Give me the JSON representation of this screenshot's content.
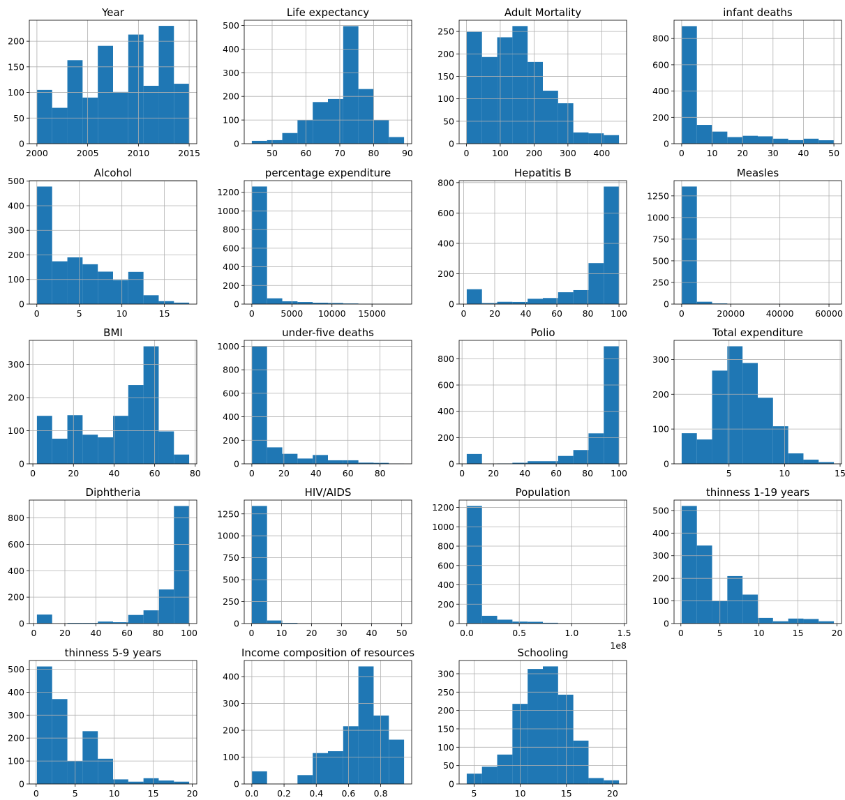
{
  "bar_color": "#1f77b4",
  "grid_color": "#b0b0b0",
  "chart_data": [
    {
      "type": "bar",
      "title": "Year",
      "bin_edges": [
        2000,
        2001.5,
        2003,
        2004.5,
        2006,
        2007.5,
        2009,
        2010.5,
        2012,
        2013.5,
        2015
      ],
      "values": [
        105,
        70,
        163,
        90,
        191,
        101,
        213,
        113,
        230,
        117
      ],
      "xlim": [
        1999.25,
        2015.75
      ],
      "ylim": [
        0,
        241
      ],
      "xticks": [
        2000,
        2005,
        2010,
        2015
      ],
      "xtick_labels": [
        "2000",
        "2005",
        "2010",
        "2015"
      ],
      "yticks": [
        0,
        50,
        100,
        150,
        200
      ],
      "ytick_labels": [
        "0",
        "50",
        "100",
        "150",
        "200"
      ]
    },
    {
      "type": "bar",
      "title": "Life expectancy",
      "bin_edges": [
        44,
        48.5,
        53,
        57.5,
        62,
        66.5,
        71,
        75.5,
        80,
        84.5,
        89
      ],
      "values": [
        12,
        15,
        45,
        100,
        176,
        189,
        497,
        231,
        100,
        28
      ],
      "xlim": [
        41.75,
        91.25
      ],
      "ylim": [
        0,
        522
      ],
      "xticks": [
        50,
        60,
        70,
        80,
        90
      ],
      "xtick_labels": [
        "50",
        "60",
        "70",
        "80",
        "90"
      ],
      "yticks": [
        0,
        100,
        200,
        300,
        400,
        500
      ],
      "ytick_labels": [
        "0",
        "100",
        "200",
        "300",
        "400",
        "500"
      ]
    },
    {
      "type": "bar",
      "title": "Adult Mortality",
      "bin_edges": [
        1,
        46,
        91,
        136,
        181,
        226,
        271,
        316,
        361,
        406,
        451
      ],
      "values": [
        249,
        193,
        237,
        262,
        182,
        118,
        90,
        25,
        23,
        19
      ],
      "xlim": [
        -21.5,
        473.5
      ],
      "ylim": [
        0,
        275
      ],
      "xticks": [
        0,
        100,
        200,
        300,
        400
      ],
      "xtick_labels": [
        "0",
        "100",
        "200",
        "300",
        "400"
      ],
      "yticks": [
        0,
        50,
        100,
        150,
        200,
        250
      ],
      "ytick_labels": [
        "0",
        "50",
        "100",
        "150",
        "200",
        "250"
      ]
    },
    {
      "type": "bar",
      "title": "infant deaths",
      "bin_edges": [
        0,
        5,
        10,
        15,
        20,
        25,
        30,
        35,
        40,
        45,
        50
      ],
      "values": [
        894,
        143,
        92,
        50,
        60,
        56,
        38,
        27,
        38,
        26
      ],
      "xlim": [
        -2.5,
        52.5
      ],
      "ylim": [
        0,
        939
      ],
      "xticks": [
        0,
        10,
        20,
        30,
        40,
        50
      ],
      "xtick_labels": [
        "0",
        "10",
        "20",
        "30",
        "40",
        "50"
      ],
      "yticks": [
        0,
        200,
        400,
        600,
        800
      ],
      "ytick_labels": [
        "0",
        "200",
        "400",
        "600",
        "800"
      ]
    },
    {
      "type": "bar",
      "title": "Alcohol",
      "bin_edges": [
        0.01,
        1.8,
        3.59,
        5.38,
        7.17,
        8.96,
        10.75,
        12.54,
        14.33,
        16.12,
        17.91
      ],
      "values": [
        478,
        174,
        190,
        162,
        132,
        98,
        131,
        36,
        12,
        6
      ],
      "xlim": [
        -0.885,
        18.805
      ],
      "ylim": [
        0,
        502
      ],
      "xticks": [
        0,
        5,
        10,
        15
      ],
      "xtick_labels": [
        "0",
        "5",
        "10",
        "15"
      ],
      "yticks": [
        0,
        100,
        200,
        300,
        400,
        500
      ],
      "ytick_labels": [
        "0",
        "100",
        "200",
        "300",
        "400",
        "500"
      ]
    },
    {
      "type": "bar",
      "title": "percentage expenditure",
      "bin_edges": [
        0,
        1900,
        3800,
        5700,
        7600,
        9500,
        11400,
        13300,
        15200,
        17100,
        19000
      ],
      "values": [
        1262,
        62,
        30,
        22,
        15,
        12,
        7,
        4,
        3,
        2
      ],
      "xlim": [
        -950,
        19950
      ],
      "ylim": [
        0,
        1325
      ],
      "xticks": [
        0,
        5000,
        10000,
        15000
      ],
      "xtick_labels": [
        "0",
        "5000",
        "10000",
        "15000"
      ],
      "yticks": [
        0,
        200,
        400,
        600,
        800,
        1000,
        1200
      ],
      "ytick_labels": [
        "0",
        "200",
        "400",
        "600",
        "800",
        "1000",
        "1200"
      ]
    },
    {
      "type": "bar",
      "title": "Hepatitis B",
      "bin_edges": [
        2,
        11.8,
        21.6,
        31.4,
        41.2,
        51,
        60.8,
        70.6,
        80.4,
        90.2,
        100
      ],
      "values": [
        98,
        7,
        15,
        14,
        35,
        40,
        78,
        92,
        270,
        774
      ],
      "xlim": [
        -2.9,
        104.9
      ],
      "ylim": [
        0,
        813
      ],
      "xticks": [
        0,
        20,
        40,
        60,
        80,
        100
      ],
      "xtick_labels": [
        "0",
        "20",
        "40",
        "60",
        "80",
        "100"
      ],
      "yticks": [
        0,
        200,
        400,
        600,
        800
      ],
      "ytick_labels": [
        "0",
        "200",
        "400",
        "600",
        "800"
      ]
    },
    {
      "type": "bar",
      "title": "Measles",
      "bin_edges": [
        0,
        6200,
        12400,
        18600,
        24800,
        31000,
        37200,
        43400,
        49600,
        55800,
        62000
      ],
      "values": [
        1358,
        27,
        8,
        4,
        2,
        1,
        1,
        0,
        0,
        1
      ],
      "xlim": [
        -3100,
        65100
      ],
      "ylim": [
        0,
        1426
      ],
      "xticks": [
        0,
        20000,
        40000,
        60000
      ],
      "xtick_labels": [
        "0",
        "20000",
        "40000",
        "60000"
      ],
      "yticks": [
        0,
        250,
        500,
        750,
        1000,
        1250
      ],
      "ytick_labels": [
        "0",
        "250",
        "500",
        "750",
        "1000",
        "1250"
      ]
    },
    {
      "type": "bar",
      "title": "BMI",
      "bin_edges": [
        2,
        9.5,
        17,
        24.5,
        32,
        39.5,
        47,
        54.5,
        62,
        69.5,
        77
      ],
      "values": [
        145,
        76,
        147,
        88,
        80,
        145,
        238,
        355,
        98,
        28
      ],
      "xlim": [
        -1.75,
        80.75
      ],
      "ylim": [
        0,
        373
      ],
      "xticks": [
        0,
        20,
        40,
        60,
        80
      ],
      "xtick_labels": [
        "0",
        "20",
        "40",
        "60",
        "80"
      ],
      "yticks": [
        0,
        100,
        200,
        300
      ],
      "ytick_labels": [
        "0",
        "100",
        "200",
        "300"
      ]
    },
    {
      "type": "bar",
      "title": "under-five deaths",
      "bin_edges": [
        0,
        9.5,
        19,
        28.5,
        38,
        47.5,
        57,
        66.5,
        76,
        85.5,
        95
      ],
      "values": [
        1000,
        140,
        85,
        45,
        75,
        30,
        30,
        10,
        8,
        3
      ],
      "xlim": [
        -4.75,
        99.75
      ],
      "ylim": [
        0,
        1050
      ],
      "xticks": [
        0,
        20,
        40,
        60,
        80
      ],
      "xtick_labels": [
        "0",
        "20",
        "40",
        "60",
        "80"
      ],
      "yticks": [
        0,
        200,
        400,
        600,
        800,
        1000
      ],
      "ytick_labels": [
        "0",
        "200",
        "400",
        "600",
        "800",
        "1000"
      ]
    },
    {
      "type": "bar",
      "title": "Polio",
      "bin_edges": [
        3,
        12.7,
        22.4,
        32.1,
        41.8,
        51.5,
        61.2,
        70.9,
        80.6,
        90.3,
        100
      ],
      "values": [
        75,
        1,
        3,
        8,
        20,
        20,
        60,
        105,
        232,
        895
      ],
      "xlim": [
        -1.85,
        104.85
      ],
      "ylim": [
        0,
        940
      ],
      "xticks": [
        0,
        20,
        40,
        60,
        80,
        100
      ],
      "xtick_labels": [
        "0",
        "20",
        "40",
        "60",
        "80",
        "100"
      ],
      "yticks": [
        0,
        200,
        400,
        600,
        800
      ],
      "ytick_labels": [
        "0",
        "200",
        "400",
        "600",
        "800"
      ]
    },
    {
      "type": "bar",
      "title": "Total expenditure",
      "bin_edges": [
        0.74,
        2.11,
        3.48,
        4.85,
        6.22,
        7.59,
        8.96,
        10.33,
        11.7,
        13.07,
        14.44
      ],
      "values": [
        88,
        70,
        268,
        338,
        290,
        190,
        108,
        30,
        12,
        5
      ],
      "xlim": [
        0.055,
        15.125
      ],
      "ylim": [
        0,
        355
      ],
      "xticks": [
        5,
        10,
        15
      ],
      "xtick_labels": [
        "5",
        "10",
        "15"
      ],
      "yticks": [
        0,
        100,
        200,
        300
      ],
      "ytick_labels": [
        "0",
        "100",
        "200",
        "300"
      ]
    },
    {
      "type": "bar",
      "title": "Diphtheria",
      "bin_edges": [
        2,
        11.8,
        21.6,
        31.4,
        41.2,
        51,
        60.8,
        70.6,
        80.6,
        90.2,
        100
      ],
      "values": [
        68,
        1,
        5,
        5,
        15,
        10,
        65,
        100,
        258,
        890
      ],
      "xlim": [
        -2.9,
        104.9
      ],
      "ylim": [
        0,
        935
      ],
      "xticks": [
        0,
        20,
        40,
        60,
        80,
        100
      ],
      "xtick_labels": [
        "0",
        "20",
        "40",
        "60",
        "80",
        "100"
      ],
      "yticks": [
        0,
        200,
        400,
        600,
        800
      ],
      "ytick_labels": [
        "0",
        "200",
        "400",
        "600",
        "800"
      ]
    },
    {
      "type": "bar",
      "title": "HIV/AIDS",
      "bin_edges": [
        0.1,
        5.17,
        10.24,
        15.31,
        20.38,
        25.45,
        30.52,
        35.59,
        40.66,
        45.73,
        50.8
      ],
      "values": [
        1340,
        35,
        8,
        3,
        2,
        1,
        1,
        1,
        0,
        1
      ],
      "xlim": [
        -2.435,
        53.335
      ],
      "ylim": [
        0,
        1407
      ],
      "xticks": [
        0,
        10,
        20,
        30,
        40,
        50
      ],
      "xtick_labels": [
        "0",
        "10",
        "20",
        "30",
        "40",
        "50"
      ],
      "yticks": [
        0,
        250,
        500,
        750,
        1000,
        1250
      ],
      "ytick_labels": [
        "0",
        "250",
        "500",
        "750",
        "1000",
        "1250"
      ]
    },
    {
      "type": "bar",
      "title": "Population",
      "bin_edges": [
        0,
        0.145,
        0.29,
        0.435,
        0.58,
        0.725,
        0.87,
        1.015,
        1.16,
        1.305,
        1.45
      ],
      "values": [
        1215,
        80,
        40,
        20,
        18,
        8,
        3,
        2,
        1,
        2
      ],
      "xlim": [
        -0.0725,
        1.5225
      ],
      "ylim": [
        0,
        1276
      ],
      "xticks": [
        0,
        0.5,
        1,
        1.5
      ],
      "xtick_labels": [
        "0.0",
        "0.5",
        "1.0",
        "1.5"
      ],
      "yticks": [
        0,
        200,
        400,
        600,
        800,
        1000,
        1200
      ],
      "ytick_labels": [
        "0",
        "200",
        "400",
        "600",
        "800",
        "1000",
        "1200"
      ],
      "offset_label": "1e8"
    },
    {
      "type": "bar",
      "title": "thinness  1-19 years",
      "bin_edges": [
        0.1,
        2.05,
        4,
        5.95,
        7.9,
        9.85,
        11.8,
        13.75,
        15.7,
        17.65,
        19.6
      ],
      "values": [
        520,
        345,
        100,
        210,
        128,
        25,
        10,
        22,
        20,
        10
      ],
      "xlim": [
        -0.875,
        20.575
      ],
      "ylim": [
        0,
        546
      ],
      "xticks": [
        0,
        5,
        10,
        15,
        20
      ],
      "xtick_labels": [
        "0",
        "5",
        "10",
        "15",
        "20"
      ],
      "yticks": [
        0,
        100,
        200,
        300,
        400,
        500
      ],
      "ytick_labels": [
        "0",
        "100",
        "200",
        "300",
        "400",
        "500"
      ]
    },
    {
      "type": "bar",
      "title": "thinness 5-9 years",
      "bin_edges": [
        0.1,
        2.05,
        4,
        5.95,
        7.9,
        9.85,
        11.8,
        13.75,
        15.7,
        17.65,
        19.6
      ],
      "values": [
        512,
        370,
        100,
        230,
        110,
        20,
        10,
        25,
        15,
        10
      ],
      "xlim": [
        -0.875,
        20.575
      ],
      "ylim": [
        0,
        538
      ],
      "xticks": [
        0,
        5,
        10,
        15,
        20
      ],
      "xtick_labels": [
        "0",
        "5",
        "10",
        "15",
        "20"
      ],
      "yticks": [
        0,
        100,
        200,
        300,
        400,
        500
      ],
      "ytick_labels": [
        "0",
        "100",
        "200",
        "300",
        "400",
        "500"
      ]
    },
    {
      "type": "bar",
      "title": "Income composition of resources",
      "bin_edges": [
        0,
        0.0945,
        0.189,
        0.2835,
        0.378,
        0.4725,
        0.567,
        0.6615,
        0.756,
        0.8505,
        0.945
      ],
      "values": [
        47,
        0,
        0,
        33,
        115,
        122,
        215,
        438,
        255,
        165
      ],
      "xlim": [
        -0.04725,
        0.99225
      ],
      "ylim": [
        0,
        460
      ],
      "xticks": [
        0,
        0.2,
        0.4,
        0.6,
        0.8
      ],
      "xtick_labels": [
        "0.0",
        "0.2",
        "0.4",
        "0.6",
        "0.8"
      ],
      "yticks": [
        0,
        100,
        200,
        300,
        400
      ],
      "ytick_labels": [
        "0",
        "100",
        "200",
        "300",
        "400"
      ]
    },
    {
      "type": "bar",
      "title": "Schooling",
      "bin_edges": [
        4.2,
        5.85,
        7.5,
        9.15,
        10.8,
        12.45,
        14.1,
        15.75,
        17.4,
        19.05,
        20.7
      ],
      "values": [
        28,
        47,
        80,
        218,
        313,
        320,
        243,
        118,
        16,
        10
      ],
      "xlim": [
        3.375,
        21.525
      ],
      "ylim": [
        0,
        336
      ],
      "xticks": [
        5,
        10,
        15,
        20
      ],
      "xtick_labels": [
        "5",
        "10",
        "15",
        "20"
      ],
      "yticks": [
        0,
        50,
        100,
        150,
        200,
        250,
        300
      ],
      "ytick_labels": [
        "0",
        "50",
        "100",
        "150",
        "200",
        "250",
        "300"
      ]
    }
  ]
}
